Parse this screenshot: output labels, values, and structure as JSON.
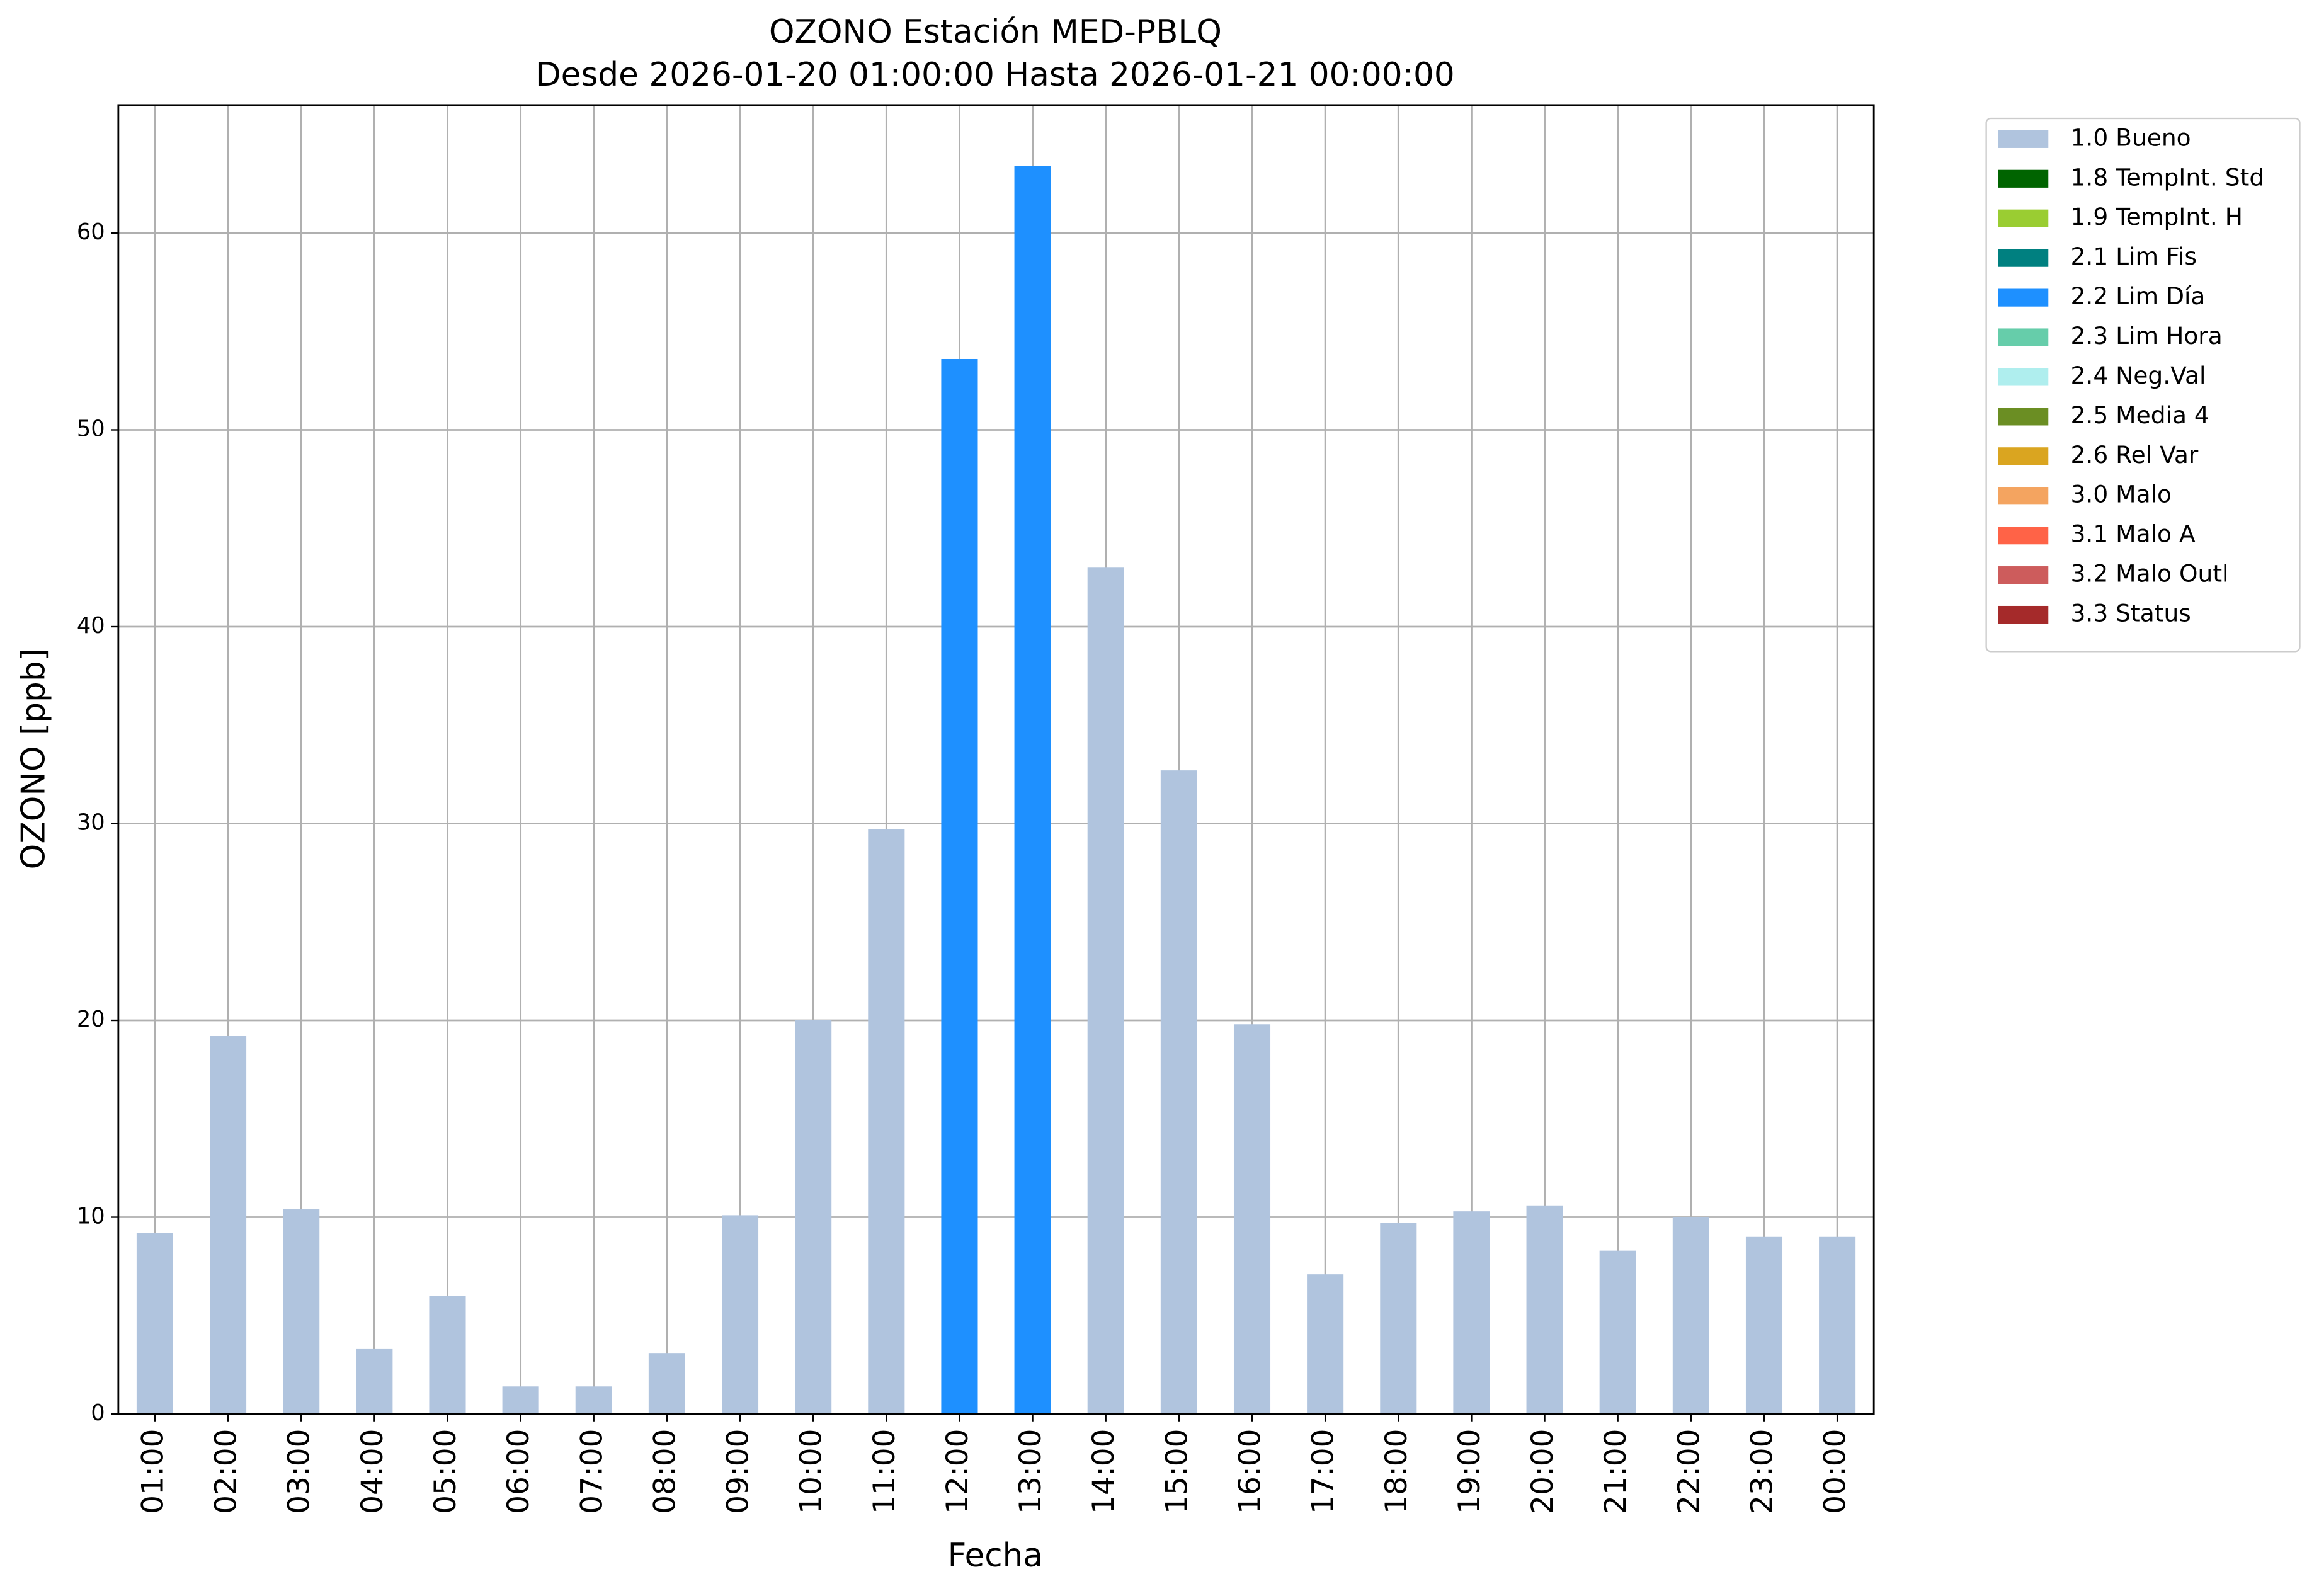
{
  "chart_data": {
    "type": "bar",
    "stacked": true,
    "title": "OZONO Estación MED-PBLQ",
    "subtitle": "Desde 2026-01-20 01:00:00 Hasta 2026-01-21 00:00:00",
    "xlabel": "Fecha",
    "ylabel": "OZONO [ppb]",
    "categories": [
      "01:00",
      "02:00",
      "03:00",
      "04:00",
      "05:00",
      "06:00",
      "07:00",
      "08:00",
      "09:00",
      "10:00",
      "11:00",
      "12:00",
      "13:00",
      "14:00",
      "15:00",
      "16:00",
      "17:00",
      "18:00",
      "19:00",
      "20:00",
      "21:00",
      "22:00",
      "23:00",
      "00:00"
    ],
    "series": [
      {
        "name": "1.0 Bueno",
        "color": "#b0c4de",
        "values": [
          9.2,
          19.2,
          10.4,
          3.3,
          6.0,
          1.4,
          1.4,
          3.1,
          10.1,
          20.0,
          29.7,
          null,
          null,
          43.0,
          32.7,
          19.8,
          7.1,
          9.7,
          10.3,
          10.6,
          8.3,
          10.0,
          9.0,
          9.0
        ]
      },
      {
        "name": "1.8 TempInt. Std",
        "color": "#006400",
        "values": [
          null,
          null,
          null,
          null,
          null,
          null,
          null,
          null,
          null,
          null,
          null,
          null,
          null,
          null,
          null,
          null,
          null,
          null,
          null,
          null,
          null,
          null,
          null,
          null
        ]
      },
      {
        "name": "1.9 TempInt. H",
        "color": "#9acd32",
        "values": [
          null,
          null,
          null,
          null,
          null,
          null,
          null,
          null,
          null,
          null,
          null,
          null,
          null,
          null,
          null,
          null,
          null,
          null,
          null,
          null,
          null,
          null,
          null,
          null
        ]
      },
      {
        "name": "2.1 Lim Fis",
        "color": "#008080",
        "values": [
          null,
          null,
          null,
          null,
          null,
          null,
          null,
          null,
          null,
          null,
          null,
          null,
          null,
          null,
          null,
          null,
          null,
          null,
          null,
          null,
          null,
          null,
          null,
          null
        ]
      },
      {
        "name": "2.2 Lim Día",
        "color": "#1e90ff",
        "values": [
          null,
          null,
          null,
          null,
          null,
          null,
          null,
          null,
          null,
          null,
          null,
          53.6,
          63.4,
          null,
          null,
          null,
          null,
          null,
          null,
          null,
          null,
          null,
          null,
          null
        ]
      },
      {
        "name": "2.3 Lim Hora",
        "color": "#66cdaa",
        "values": [
          null,
          null,
          null,
          null,
          null,
          null,
          null,
          null,
          null,
          null,
          null,
          null,
          null,
          null,
          null,
          null,
          null,
          null,
          null,
          null,
          null,
          null,
          null,
          null
        ]
      },
      {
        "name": "2.4 Neg.Val",
        "color": "#afeeee",
        "values": [
          null,
          null,
          null,
          null,
          null,
          null,
          null,
          null,
          null,
          null,
          null,
          null,
          null,
          null,
          null,
          null,
          null,
          null,
          null,
          null,
          null,
          null,
          null,
          null
        ]
      },
      {
        "name": "2.5 Media 4",
        "color": "#6b8e23",
        "values": [
          null,
          null,
          null,
          null,
          null,
          null,
          null,
          null,
          null,
          null,
          null,
          null,
          null,
          null,
          null,
          null,
          null,
          null,
          null,
          null,
          null,
          null,
          null,
          null
        ]
      },
      {
        "name": "2.6 Rel Var",
        "color": "#daa520",
        "values": [
          null,
          null,
          null,
          null,
          null,
          null,
          null,
          null,
          null,
          null,
          null,
          null,
          null,
          null,
          null,
          null,
          null,
          null,
          null,
          null,
          null,
          null,
          null,
          null
        ]
      },
      {
        "name": "3.0 Malo",
        "color": "#f4a460",
        "values": [
          null,
          null,
          null,
          null,
          null,
          null,
          null,
          null,
          null,
          null,
          null,
          null,
          null,
          null,
          null,
          null,
          null,
          null,
          null,
          null,
          null,
          null,
          null,
          null
        ]
      },
      {
        "name": "3.1 Malo A",
        "color": "#ff6347",
        "values": [
          null,
          null,
          null,
          null,
          null,
          null,
          null,
          null,
          null,
          null,
          null,
          null,
          null,
          null,
          null,
          null,
          null,
          null,
          null,
          null,
          null,
          null,
          null,
          null
        ]
      },
      {
        "name": "3.2 Malo Outl",
        "color": "#cd5c5c",
        "values": [
          null,
          null,
          null,
          null,
          null,
          null,
          null,
          null,
          null,
          null,
          null,
          null,
          null,
          null,
          null,
          null,
          null,
          null,
          null,
          null,
          null,
          null,
          null,
          null
        ]
      },
      {
        "name": "3.3 Status",
        "color": "#a52a2a",
        "values": [
          null,
          null,
          null,
          null,
          null,
          null,
          null,
          null,
          null,
          null,
          null,
          null,
          null,
          null,
          null,
          null,
          null,
          null,
          null,
          null,
          null,
          null,
          null,
          null
        ]
      }
    ],
    "ylim": [
      0,
      66.5
    ],
    "yticks": [
      0,
      10,
      20,
      30,
      40,
      50,
      60
    ],
    "grid": true,
    "legend": "outside right"
  }
}
